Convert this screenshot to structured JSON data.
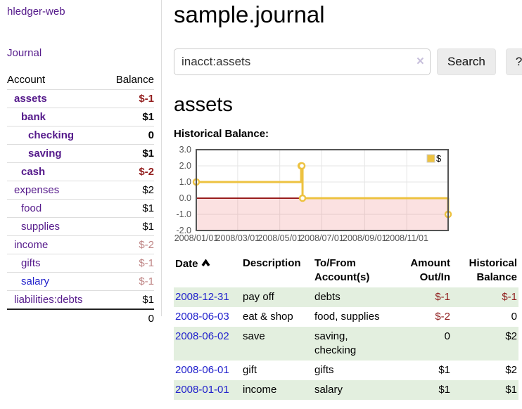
{
  "app": {
    "brand": "hledger-web"
  },
  "sidebar": {
    "journal_link": "Journal",
    "accounts": {
      "headers": {
        "account": "Account",
        "balance": "Balance"
      },
      "rows": [
        {
          "account": "assets",
          "balance": "$-1",
          "indent": 1,
          "bold": true,
          "neg": "strong"
        },
        {
          "account": "bank",
          "balance": "$1",
          "indent": 2,
          "bold": true
        },
        {
          "account": "checking",
          "balance": "0",
          "indent": 3,
          "bold": true
        },
        {
          "account": "saving",
          "balance": "$1",
          "indent": 3,
          "bold": true
        },
        {
          "account": "cash",
          "balance": "$-2",
          "indent": 2,
          "bold": true,
          "neg": "strong"
        },
        {
          "account": "expenses",
          "balance": "$2",
          "indent": 1
        },
        {
          "account": "food",
          "balance": "$1",
          "indent": 2
        },
        {
          "account": "supplies",
          "balance": "$1",
          "indent": 2
        },
        {
          "account": "income",
          "balance": "$-2",
          "indent": 1,
          "neg": "soft"
        },
        {
          "account": "gifts",
          "balance": "$-1",
          "indent": 2,
          "neg": "soft"
        },
        {
          "account": "salary",
          "balance": "$-1",
          "indent": 2,
          "neg": "soft",
          "blue": true
        },
        {
          "account": "liabilities:debts",
          "balance": "$1",
          "indent": 1
        }
      ],
      "total": "0"
    }
  },
  "main": {
    "title": "sample.journal",
    "search": {
      "value": "inacct:assets",
      "clear": "×",
      "button": "Search",
      "help": "?"
    },
    "heading": "assets",
    "chart_title": "Historical Balance:",
    "register": {
      "headers": {
        "date": "Date",
        "description": "Description",
        "accounts": "To/From Account(s)",
        "amount": "Amount Out/In",
        "balance": "Historical Balance"
      },
      "rows": [
        {
          "date": "2008-12-31",
          "description": "pay off",
          "accounts": "debts",
          "amount": "$-1",
          "balance": "$-1",
          "amount_neg": true,
          "balance_neg": true
        },
        {
          "date": "2008-06-03",
          "description": "eat & shop",
          "accounts": "food, supplies",
          "amount": "$-2",
          "balance": "0",
          "amount_neg": true
        },
        {
          "date": "2008-06-02",
          "description": "save",
          "accounts": "saving, checking",
          "amount": "0",
          "balance": "$2"
        },
        {
          "date": "2008-06-01",
          "description": "gift",
          "accounts": "gifts",
          "amount": "$1",
          "balance": "$2"
        },
        {
          "date": "2008-01-01",
          "description": "income",
          "accounts": "salary",
          "amount": "$1",
          "balance": "$1"
        }
      ]
    }
  },
  "chart_data": {
    "type": "line",
    "step": true,
    "title": "Historical Balance:",
    "series": [
      {
        "name": "$",
        "color": "#edc240",
        "points": [
          [
            "2008-01-01",
            1
          ],
          [
            "2008-06-01",
            2
          ],
          [
            "2008-06-02",
            2
          ],
          [
            "2008-06-03",
            0
          ],
          [
            "2008-12-31",
            -1
          ]
        ]
      }
    ],
    "x_range": [
      "2008-01-01",
      "2008-12-31"
    ],
    "x_tick_dates": [
      "2008-01-01",
      "2008-03-01",
      "2008-05-01",
      "2008-07-01",
      "2008-09-01",
      "2008-11-01"
    ],
    "x_tick_labels": [
      "2008/01/01",
      "2008/03/01",
      "2008/05/01",
      "2008/07/01",
      "2008/09/01",
      "2008/11/01"
    ],
    "y_ticks": [
      3.0,
      2.0,
      1.0,
      0.0,
      -1.0,
      -2.0
    ],
    "ylim": [
      -2,
      3
    ],
    "grid": true,
    "legend_position": "top-right",
    "colors": {
      "negative_region": "rgba(235,90,90,0.18)",
      "zero_line": "#8b0000",
      "border": "#545454",
      "gridline": "#e6e6e6",
      "tick_text": "#545454",
      "marker_fill": "#ffffff"
    }
  }
}
